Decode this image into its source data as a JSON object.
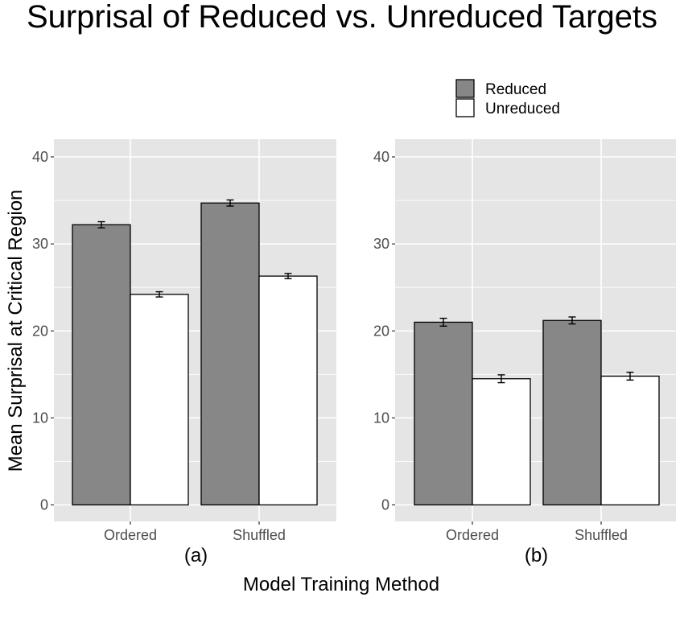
{
  "colors": {
    "panel_bg": "#e5e5e5",
    "grid": "#ffffff",
    "reduced": "#878787",
    "unreduced": "#ffffff"
  },
  "chart_data": {
    "type": "bar",
    "title": "Surprisal of Reduced vs. Unreduced Targets",
    "ylabel": "Mean Surprisal at Critical Region",
    "xlabel": "Model Training Method",
    "ylim": [
      0,
      40
    ],
    "yticks": [
      "0",
      "10",
      "20",
      "30",
      "40"
    ],
    "categories": [
      "Ordered",
      "Shuffled"
    ],
    "legend": [
      "Reduced",
      "Unreduced"
    ],
    "panels": [
      {
        "label": "(a)",
        "series": [
          {
            "name": "Reduced",
            "values": [
              32.2,
              34.7
            ],
            "errors": [
              0.35,
              0.35
            ]
          },
          {
            "name": "Unreduced",
            "values": [
              24.2,
              26.3
            ],
            "errors": [
              0.3,
              0.3
            ]
          }
        ]
      },
      {
        "label": "(b)",
        "series": [
          {
            "name": "Reduced",
            "values": [
              21.0,
              21.2
            ],
            "errors": [
              0.45,
              0.4
            ]
          },
          {
            "name": "Unreduced",
            "values": [
              14.5,
              14.8
            ],
            "errors": [
              0.45,
              0.45
            ]
          }
        ]
      }
    ]
  }
}
